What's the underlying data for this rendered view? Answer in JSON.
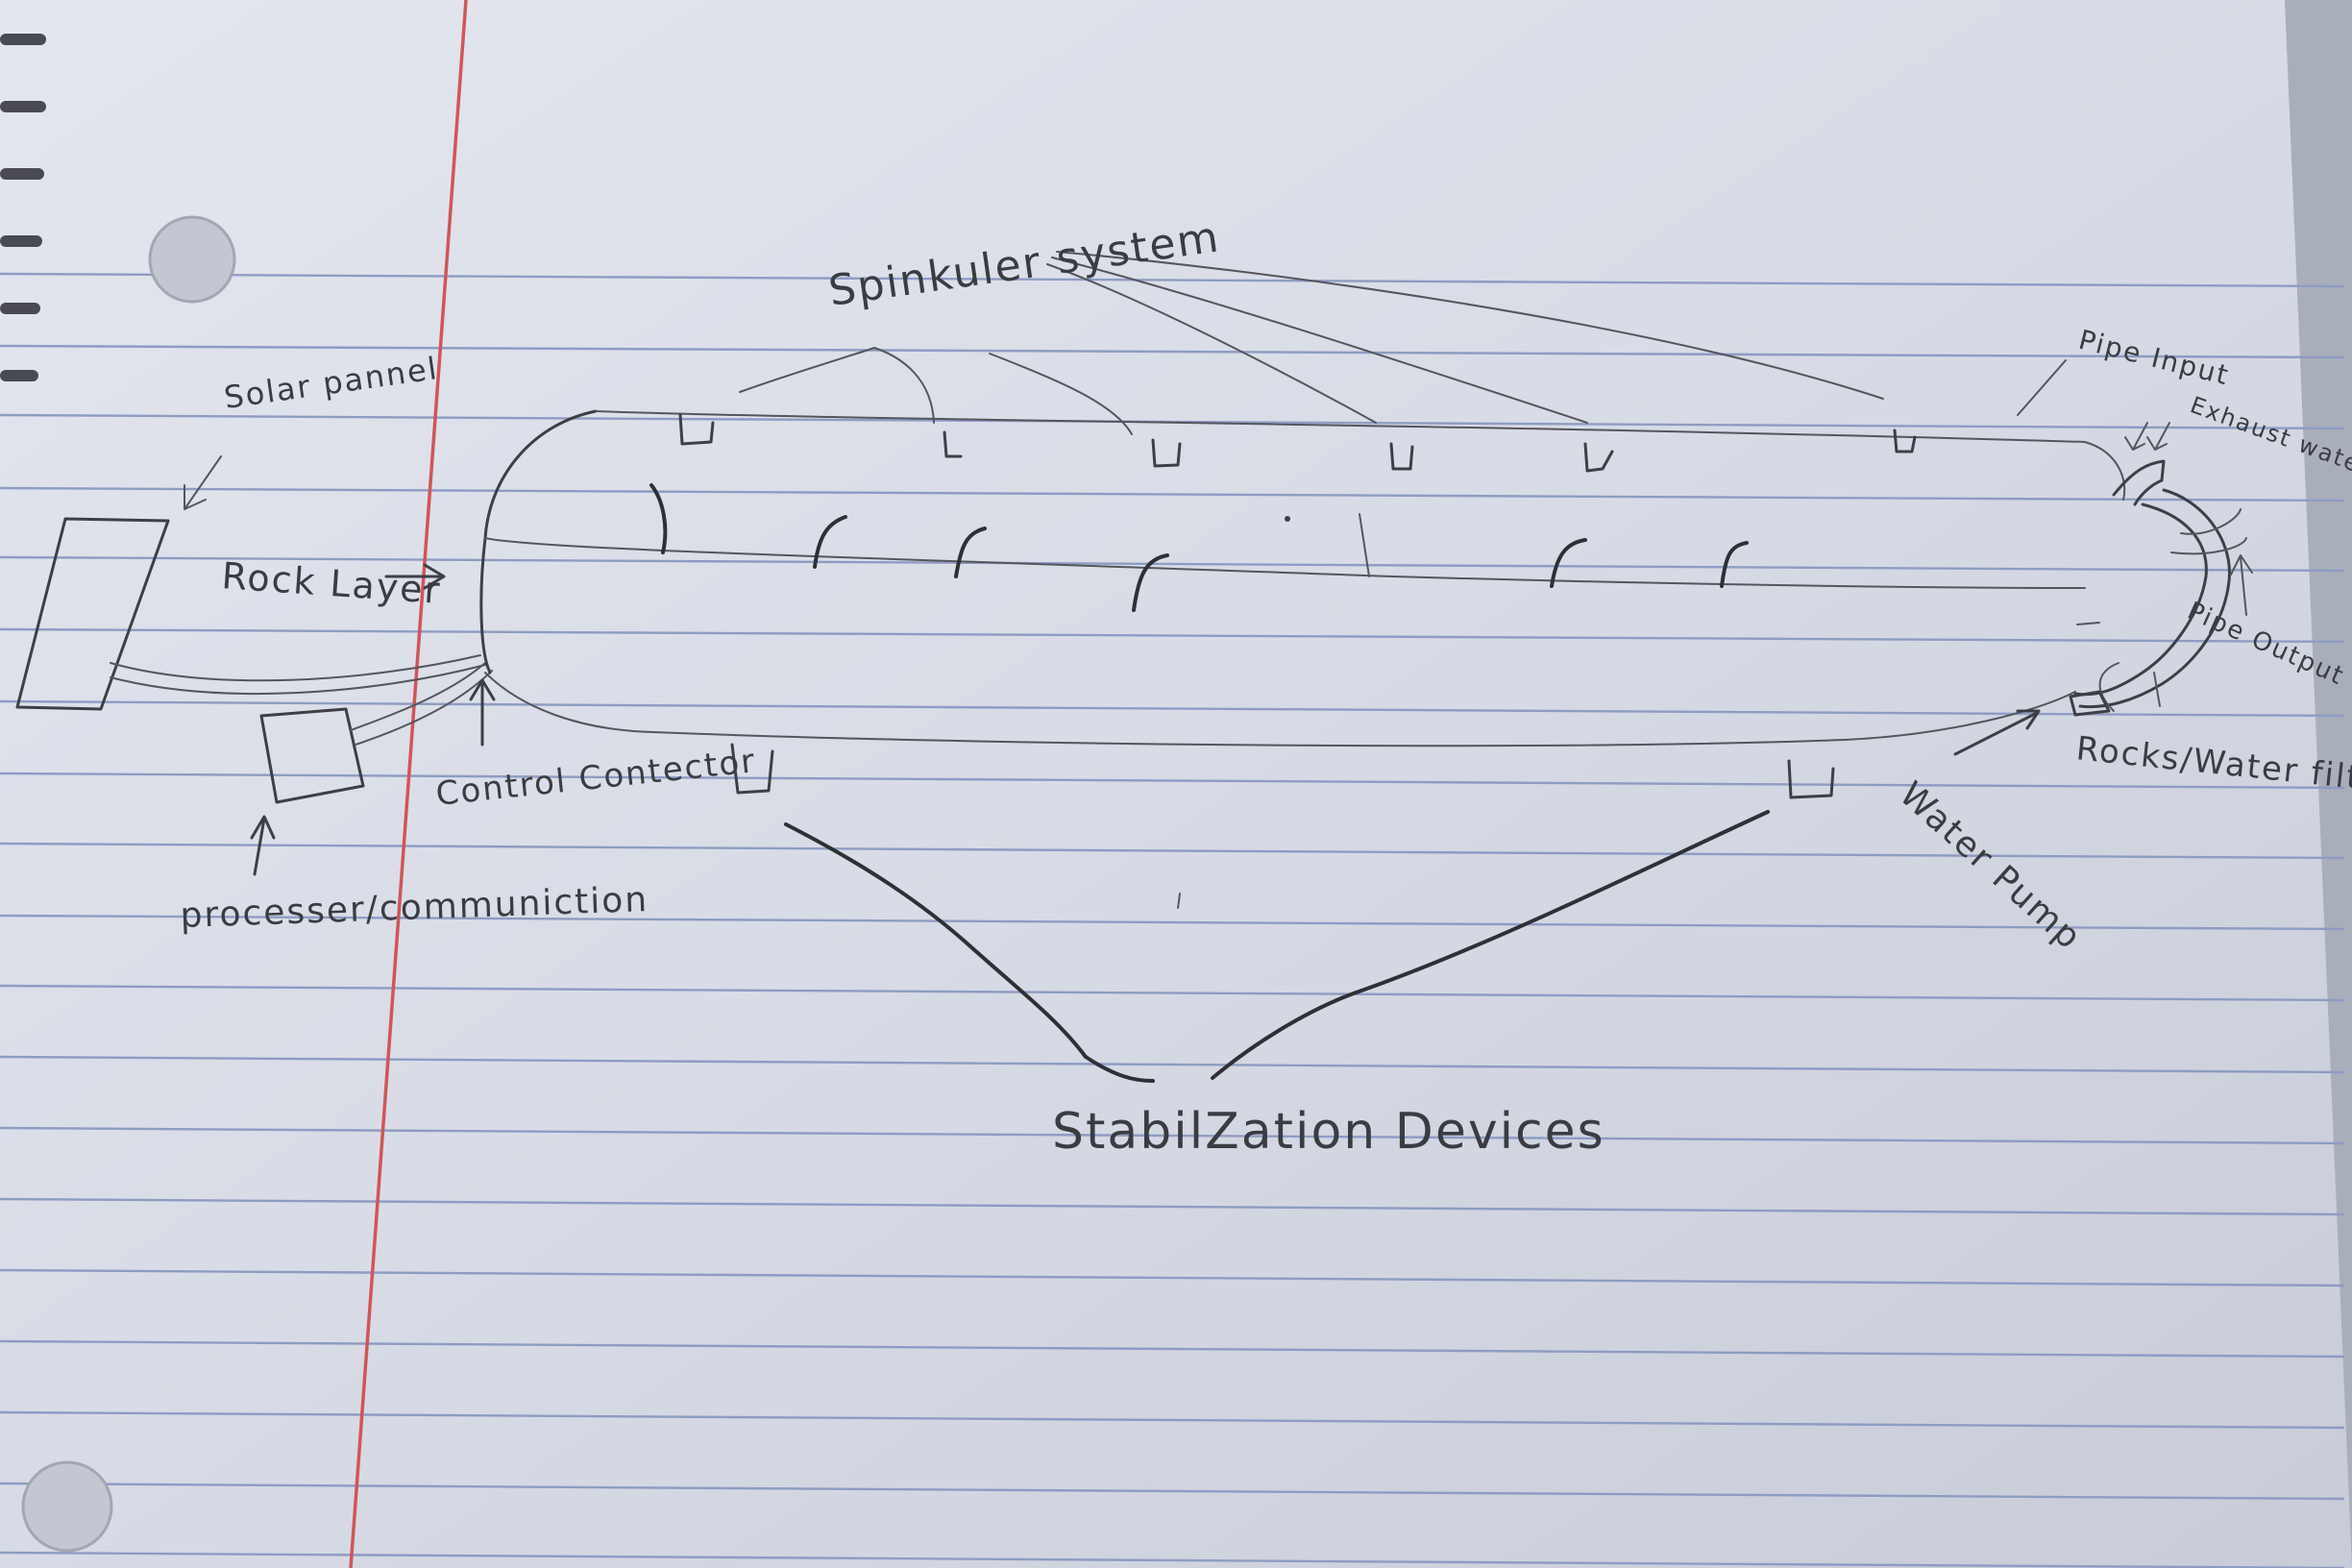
{
  "diagram": {
    "labels": {
      "sprinkler_system": "Spinkuler system",
      "solar_panel": "Solar pannel",
      "rock_layer": "Rock Layer",
      "processor_communication": "processer/communiction",
      "control_controller": "Control Contector",
      "pipe_input": "Pipe Input",
      "exhaust_water": "Exhaust water",
      "pipe_output": "Pipe Output",
      "rocks_water_filtration": "Rocks/Water filtration tool",
      "water_pump": "Water Pump",
      "stabilization_devices": "StabilZation Devices"
    }
  }
}
